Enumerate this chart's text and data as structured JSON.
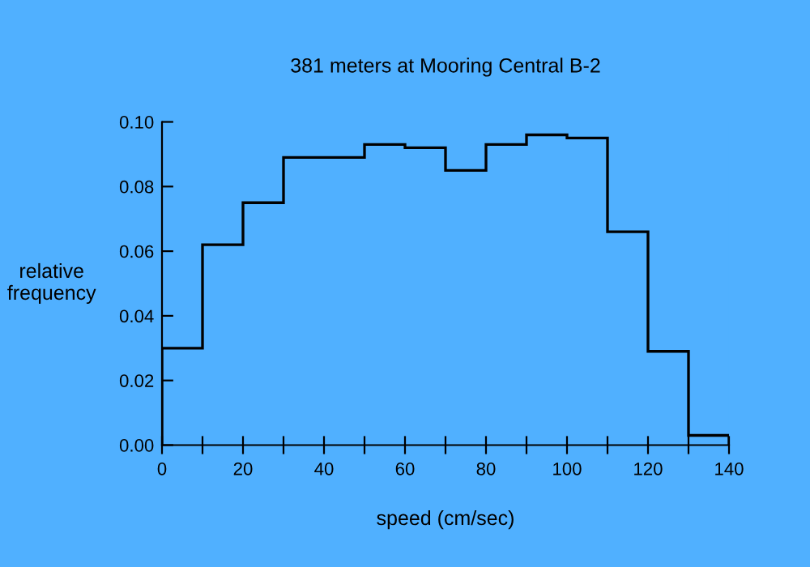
{
  "chart_data": {
    "type": "histogram",
    "title": "381 meters at Mooring Central B-2",
    "xlabel": "speed (cm/sec)",
    "ylabel": "relative\nfrequency",
    "bins": [
      0,
      10,
      20,
      30,
      40,
      50,
      60,
      70,
      80,
      90,
      100,
      110,
      120,
      130,
      140
    ],
    "values": [
      0.03,
      0.062,
      0.075,
      0.089,
      0.089,
      0.093,
      0.092,
      0.085,
      0.093,
      0.096,
      0.095,
      0.066,
      0.029,
      0.003
    ],
    "color": "#000000",
    "xlim": [
      0,
      140
    ],
    "xticks": [
      0,
      {
        "value": 10,
        "label": null
      },
      20,
      {
        "value": 30,
        "label": null
      },
      40,
      {
        "value": 50,
        "label": null
      },
      60,
      {
        "value": 70,
        "label": null
      },
      80,
      {
        "value": 90,
        "label": null
      },
      100,
      {
        "value": 110,
        "label": null
      },
      120,
      {
        "value": 130,
        "label": null
      },
      140
    ],
    "ylim": [
      0,
      0.1
    ],
    "yticks": [
      {
        "value": 0,
        "label": "0.00"
      },
      {
        "value": 0.02,
        "label": "0.02"
      },
      {
        "value": 0.04,
        "label": "0.04"
      },
      {
        "value": 0.06,
        "label": "0.06"
      },
      {
        "value": 0.08,
        "label": "0.08"
      },
      {
        "value": 0.1,
        "label": "0.10"
      }
    ],
    "grid": false
  }
}
